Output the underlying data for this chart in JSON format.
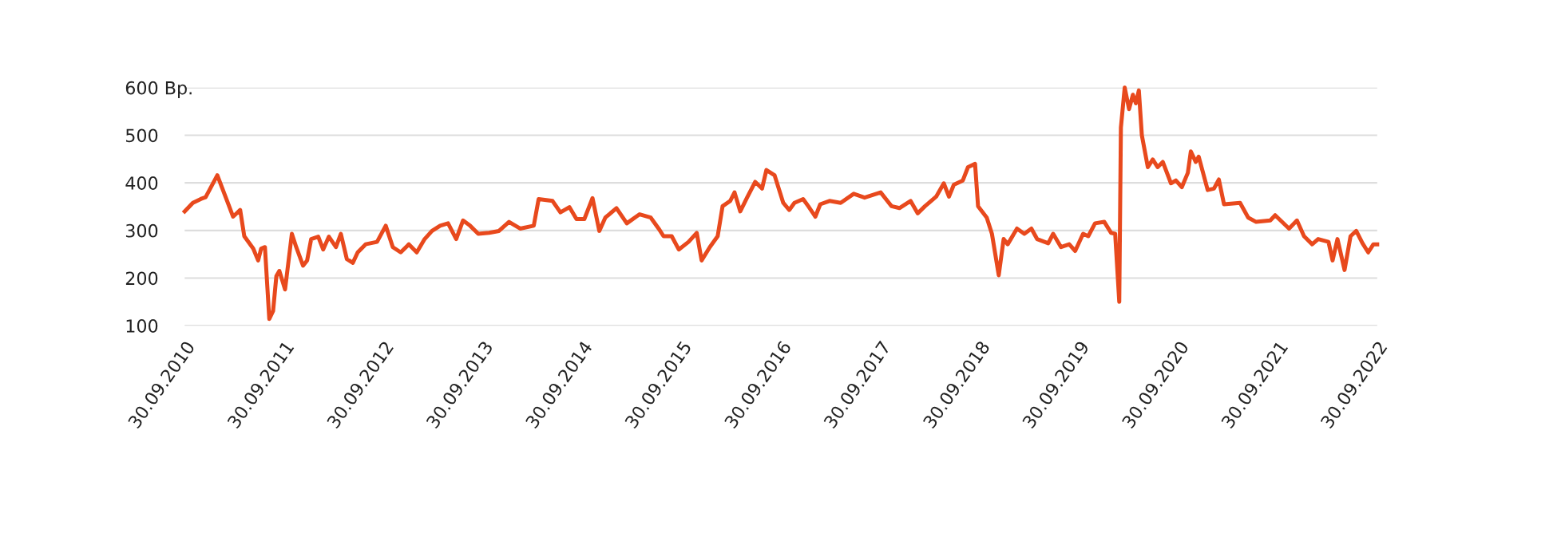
{
  "chart_data": {
    "type": "line",
    "x": [
      "2010-09-30",
      "2010-10-30",
      "2010-11-28",
      "2010-12-16",
      "2011-01-28",
      "2011-03-27",
      "2011-04-22",
      "2011-05-07",
      "2011-06-09",
      "2011-06-27",
      "2011-07-08",
      "2011-07-22",
      "2011-08-07",
      "2011-08-21",
      "2011-09-02",
      "2011-09-13",
      "2011-10-04",
      "2011-10-29",
      "2011-11-14",
      "2011-12-09",
      "2011-12-24",
      "2012-01-08",
      "2012-02-03",
      "2012-02-21",
      "2012-03-13",
      "2012-04-08",
      "2012-04-26",
      "2012-05-18",
      "2012-06-09",
      "2012-06-27",
      "2012-07-26",
      "2012-09-06",
      "2012-10-08",
      "2012-11-03",
      "2012-12-02",
      "2013-01-01",
      "2013-01-30",
      "2013-02-28",
      "2013-03-27",
      "2013-04-26",
      "2013-05-25",
      "2013-06-24",
      "2013-07-19",
      "2013-08-14",
      "2013-09-13",
      "2013-10-23",
      "2013-11-28",
      "2014-01-04",
      "2014-02-14",
      "2014-04-05",
      "2014-04-23",
      "2014-06-13",
      "2014-07-12",
      "2014-08-14",
      "2014-09-09",
      "2014-10-08",
      "2014-11-07",
      "2014-12-02",
      "2014-12-24",
      "2015-02-03",
      "2015-03-13",
      "2015-04-29",
      "2015-06-09",
      "2015-07-08",
      "2015-07-26",
      "2015-08-25",
      "2015-09-20",
      "2015-10-26",
      "2015-11-25",
      "2015-12-13",
      "2016-01-12",
      "2016-02-10",
      "2016-02-28",
      "2016-03-27",
      "2016-04-12",
      "2016-05-03",
      "2016-05-28",
      "2016-06-27",
      "2016-07-22",
      "2016-08-07",
      "2016-09-06",
      "2016-10-08",
      "2016-10-30",
      "2016-11-18",
      "2016-12-20",
      "2017-01-08",
      "2017-02-03",
      "2017-02-21",
      "2017-03-27",
      "2017-05-07",
      "2017-06-24",
      "2017-08-03",
      "2017-10-01",
      "2017-11-10",
      "2017-12-09",
      "2018-01-19",
      "2018-02-14",
      "2018-03-13",
      "2018-04-23",
      "2018-05-21",
      "2018-06-09",
      "2018-06-27",
      "2018-07-30",
      "2018-08-18",
      "2018-09-13",
      "2018-09-24",
      "2018-10-26",
      "2018-11-14",
      "2018-12-09",
      "2018-12-27",
      "2019-01-11",
      "2019-02-14",
      "2019-03-13",
      "2019-04-08",
      "2019-04-29",
      "2019-06-09",
      "2019-06-27",
      "2019-07-26",
      "2019-08-25",
      "2019-09-16",
      "2019-10-15",
      "2019-11-03",
      "2019-11-28",
      "2020-01-01",
      "2020-01-26",
      "2020-02-10",
      "2020-02-25",
      "2020-03-02",
      "2020-03-16",
      "2020-04-01",
      "2020-04-15",
      "2020-04-26",
      "2020-05-07",
      "2020-05-18",
      "2020-06-09",
      "2020-06-27",
      "2020-07-15",
      "2020-08-03",
      "2020-09-02",
      "2020-09-20",
      "2020-10-12",
      "2020-11-03",
      "2020-11-14",
      "2020-12-02",
      "2020-12-13",
      "2021-01-15",
      "2021-02-07",
      "2021-02-25",
      "2021-03-16",
      "2021-05-14",
      "2021-06-13",
      "2021-07-12",
      "2021-09-02",
      "2021-09-20",
      "2021-11-10",
      "2021-12-09",
      "2022-01-04",
      "2022-02-03",
      "2022-02-25",
      "2022-04-04",
      "2022-04-19",
      "2022-05-07",
      "2022-06-02",
      "2022-06-24",
      "2022-07-15",
      "2022-08-07",
      "2022-08-28",
      "2022-09-16",
      "2022-09-30"
    ],
    "series": [
      {
        "color": "#e8491d",
        "values": [
          340,
          358,
          366,
          370,
          416,
          329,
          343,
          288,
          262,
          237,
          262,
          265,
          114,
          131,
          204,
          215,
          176,
          293,
          265,
          226,
          237,
          282,
          287,
          260,
          287,
          265,
          293,
          240,
          232,
          254,
          271,
          276,
          310,
          265,
          254,
          271,
          254,
          282,
          299,
          310,
          315,
          282,
          321,
          310,
          293,
          295,
          299,
          318,
          304,
          310,
          366,
          362,
          338,
          349,
          324,
          324,
          368,
          299,
          327,
          347,
          315,
          334,
          327,
          304,
          288,
          288,
          260,
          276,
          295,
          237,
          265,
          288,
          351,
          362,
          380,
          340,
          369,
          402,
          388,
          427,
          416,
          358,
          343,
          358,
          366,
          351,
          329,
          355,
          362,
          358,
          377,
          369,
          380,
          351,
          347,
          362,
          336,
          351,
          371,
          399,
          371,
          396,
          405,
          433,
          440,
          351,
          327,
          293,
          206,
          282,
          271,
          304,
          293,
          304,
          282,
          273,
          293,
          265,
          271,
          257,
          293,
          288,
          315,
          318,
          295,
          293,
          150,
          516,
          600,
          555,
          585,
          567,
          594,
          500,
          433,
          449,
          433,
          444,
          399,
          405,
          391,
          421,
          466,
          444,
          455,
          385,
          388,
          407,
          355,
          358,
          327,
          318,
          321,
          332,
          304,
          321,
          288,
          271,
          282,
          276,
          237,
          282,
          217,
          288,
          299,
          273,
          254,
          271,
          271
        ]
      }
    ],
    "xlim": [
      "2010-09-30",
      "2022-09-30"
    ],
    "xticks": [
      {
        "value": "2010-09-30",
        "label": "30.09.2010"
      },
      {
        "value": "2011-09-30",
        "label": "30.09.2011"
      },
      {
        "value": "2012-09-30",
        "label": "30.09.2012"
      },
      {
        "value": "2013-09-30",
        "label": "30.09.2013"
      },
      {
        "value": "2014-09-30",
        "label": "30.09.2014"
      },
      {
        "value": "2015-09-30",
        "label": "30.09.2015"
      },
      {
        "value": "2016-09-30",
        "label": "30.09.2016"
      },
      {
        "value": "2017-09-30",
        "label": "30.09.2017"
      },
      {
        "value": "2018-09-30",
        "label": "30.09.2018"
      },
      {
        "value": "2019-09-30",
        "label": "30.09.2019"
      },
      {
        "value": "2020-09-30",
        "label": "30.09.2020"
      },
      {
        "value": "2021-09-30",
        "label": "30.09.2021"
      },
      {
        "value": "2022-09-30",
        "label": "30.09.2022"
      }
    ],
    "ylim": [
      100,
      600
    ],
    "yticks": [
      100,
      200,
      300,
      400,
      500,
      {
        "value": 600,
        "label": "600 Bp."
      }
    ],
    "grid": "y",
    "line_style": "solid",
    "marker": "none"
  }
}
